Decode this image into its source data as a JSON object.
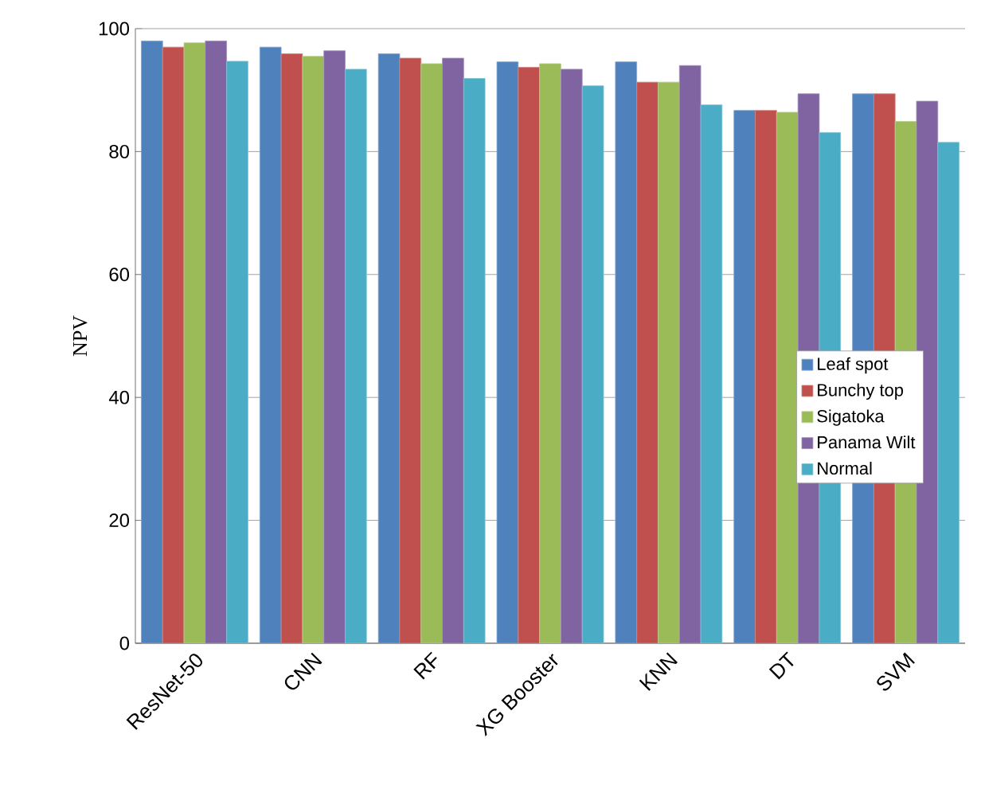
{
  "chart_data": {
    "type": "bar",
    "ylabel": "NPV",
    "categories": [
      "ResNet-50",
      "CNN",
      "RF",
      "XG Booster",
      "KNN",
      "DT",
      "SVM"
    ],
    "series": [
      {
        "name": "Leaf spot",
        "color": "#4f81bd",
        "values": [
          98.0,
          97.0,
          95.9,
          94.6,
          94.6,
          86.7,
          89.4
        ]
      },
      {
        "name": "Bunchy top",
        "color": "#c0504d",
        "values": [
          97.0,
          95.9,
          95.2,
          93.7,
          91.3,
          86.7,
          89.4
        ]
      },
      {
        "name": "Sigatoka",
        "color": "#9bbb59",
        "values": [
          97.7,
          95.5,
          94.3,
          94.3,
          91.3,
          86.4,
          84.9
        ]
      },
      {
        "name": "Panama Wilt",
        "color": "#8064a2",
        "values": [
          98.0,
          96.4,
          95.2,
          93.4,
          94.0,
          89.4,
          88.2
        ]
      },
      {
        "name": "Normal",
        "color": "#4bacc6",
        "values": [
          94.7,
          93.4,
          91.9,
          90.7,
          87.6,
          83.1,
          81.5
        ]
      }
    ],
    "ylim": [
      0,
      100
    ],
    "yticks": [
      0,
      20,
      40,
      60,
      80,
      100
    ],
    "grid": "y",
    "legend": "right"
  }
}
